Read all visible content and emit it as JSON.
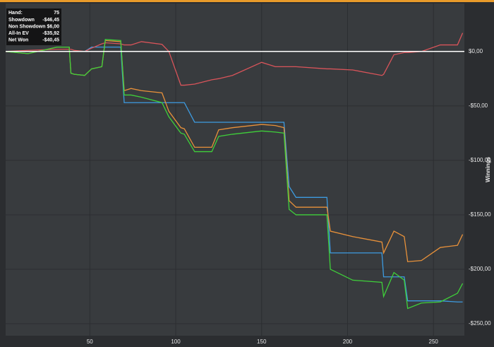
{
  "chart_data": {
    "type": "line",
    "y_axis_label": "Winnings",
    "x": [
      1,
      14,
      31,
      38,
      39,
      41,
      47,
      51,
      57,
      59,
      68,
      70,
      74,
      80,
      92,
      96,
      103,
      105,
      111,
      121,
      125,
      133,
      150,
      158,
      163,
      166,
      170,
      188,
      190,
      203,
      220,
      221,
      227,
      233,
      235,
      243,
      254,
      264,
      267
    ],
    "series": [
      {
        "name": "Showdown",
        "color": "#3d9be0",
        "values": [
          0,
          0,
          0,
          0,
          0,
          0,
          0,
          4,
          4,
          4,
          4,
          -47,
          -47,
          -47,
          -47,
          -47,
          -47,
          -47,
          -65,
          -65,
          -65,
          -65,
          -65,
          -65,
          -65,
          -124,
          -134,
          -134,
          -185,
          -185,
          -185,
          -207,
          -207,
          -207,
          -229,
          -229,
          -229,
          -230,
          -230
        ]
      },
      {
        "name": "Non Showdown",
        "color": "#d9545a",
        "values": [
          0,
          1,
          2,
          2,
          2,
          1,
          0,
          3,
          7,
          8,
          7,
          6,
          6,
          9,
          6.5,
          0,
          -31,
          -31,
          -30,
          -26,
          -25,
          -22,
          -10,
          -14,
          -14,
          -14,
          -14,
          -16,
          -16,
          -17,
          -22,
          -21,
          -3,
          -1,
          -1,
          0,
          6,
          6,
          17
        ]
      },
      {
        "name": "All-In EV",
        "color": "#e8913a",
        "values": [
          0,
          -2,
          4,
          4,
          -20,
          -21,
          -22,
          -16,
          -14,
          10,
          9,
          -36,
          -34,
          -36,
          -38,
          -55,
          -70,
          -71,
          -88,
          -88,
          -72,
          -70,
          -67,
          -68,
          -70,
          -137,
          -143,
          -143,
          -165,
          -170,
          -175,
          -185,
          -165,
          -170,
          -193,
          -192,
          -180,
          -178,
          -168
        ]
      },
      {
        "name": "Net Won",
        "color": "#3fcf3a",
        "values": [
          0,
          -2,
          4,
          4,
          -20,
          -21,
          -22,
          -16,
          -14,
          11,
          10,
          -40,
          -40,
          -42,
          -47,
          -60,
          -75,
          -76,
          -92,
          -92,
          -78,
          -76,
          -73,
          -74,
          -75,
          -145,
          -150,
          -150,
          -200,
          -210,
          -212,
          -225,
          -203,
          -210,
          -236,
          -231,
          -230,
          -222,
          -213
        ]
      }
    ],
    "tooltip": {
      "hand_label": "Hand:",
      "hand": 75,
      "values": [
        "-$46,45",
        "$6,00",
        "-$35,92",
        "-$40,45"
      ]
    },
    "xlim": [
      1,
      268
    ],
    "xticks": [
      50,
      100,
      150,
      200,
      250
    ],
    "ylim": [
      -261,
      44
    ],
    "yticks": [
      {
        "value": 0,
        "label": "$0,00"
      },
      {
        "value": -50,
        "label": "-$50,00"
      },
      {
        "value": -100,
        "label": "-$100,00"
      },
      {
        "value": -150,
        "label": "-$150,00"
      },
      {
        "value": -200,
        "label": "-$200,00"
      },
      {
        "value": -250,
        "label": "-$250,00"
      }
    ],
    "grid": true,
    "zero_line_color": "#ffffff"
  }
}
